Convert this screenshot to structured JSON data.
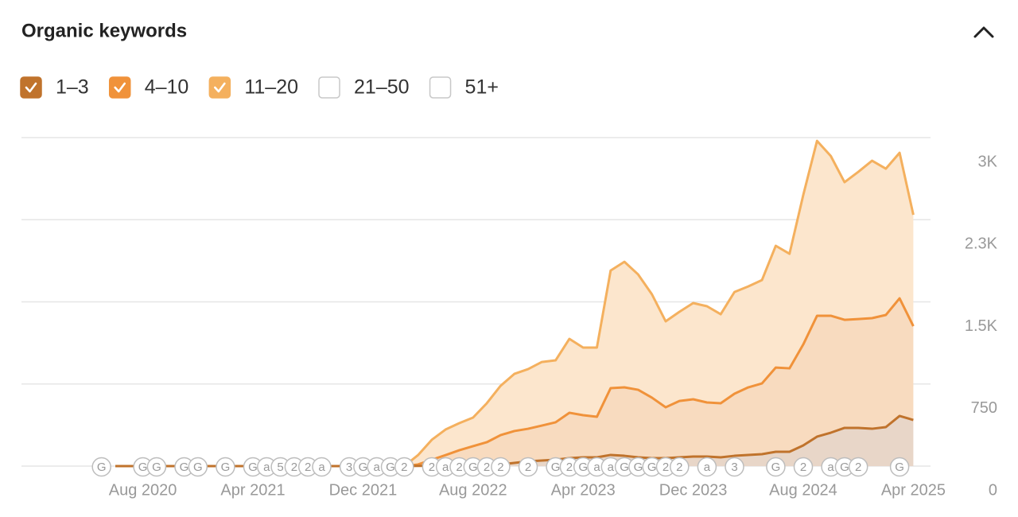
{
  "title": "Organic keywords",
  "chart_data": {
    "type": "stacked-area",
    "categories": [
      null,
      null,
      "Aug 2020",
      null,
      null,
      null,
      null,
      null,
      null,
      null,
      "Apr 2021",
      null,
      null,
      null,
      null,
      null,
      null,
      null,
      "Dec 2021",
      null,
      null,
      null,
      null,
      null,
      null,
      null,
      "Aug 2022",
      null,
      null,
      null,
      null,
      null,
      null,
      null,
      "Apr 2023",
      null,
      null,
      null,
      null,
      null,
      null,
      null,
      "Dec 2023",
      null,
      null,
      null,
      null,
      null,
      null,
      null,
      "Aug 2024",
      null,
      null,
      null,
      null,
      null,
      null,
      null,
      "Apr 2025"
    ],
    "series": [
      {
        "name": "1–3",
        "color": "#c0732c",
        "fill": "#e8d6c8",
        "values": [
          0,
          0,
          0,
          0,
          0,
          0,
          0,
          0,
          0,
          0,
          0,
          0,
          0,
          0,
          0,
          0,
          0,
          0,
          0,
          0,
          0,
          0,
          2,
          3,
          5,
          8,
          10,
          12,
          15,
          29,
          44,
          51,
          58,
          73,
          80,
          80,
          102,
          94,
          80,
          73,
          73,
          80,
          87,
          87,
          80,
          94,
          102,
          109,
          131,
          131,
          189,
          269,
          305,
          349,
          349,
          341,
          356,
          458,
          421
        ]
      },
      {
        "name": "4–10",
        "color": "#f0923a",
        "fill": "#f8dbbf",
        "values": [
          0,
          0,
          0,
          0,
          0,
          0,
          0,
          0,
          0,
          0,
          0,
          0,
          0,
          0,
          0,
          0,
          0,
          0,
          0,
          0,
          0,
          0,
          13,
          55,
          95,
          137,
          172,
          206,
          268,
          291,
          297,
          319,
          342,
          414,
          385,
          370,
          610,
          625,
          617,
          552,
          464,
          515,
          523,
          494,
          494,
          567,
          617,
          646,
          769,
          762,
          922,
          1104,
          1068,
          987,
          994,
          1010,
          1024,
          1074,
          857
        ]
      },
      {
        "name": "11–20",
        "color": "#f4b05e",
        "fill": "#fce6cd",
        "values": [
          0,
          0,
          0,
          0,
          0,
          0,
          0,
          0,
          0,
          0,
          0,
          0,
          0,
          0,
          0,
          0,
          0,
          0,
          0,
          0,
          0,
          0,
          85,
          182,
          234,
          247,
          261,
          356,
          450,
          522,
          545,
          581,
          566,
          675,
          617,
          632,
          1074,
          1147,
          1053,
          944,
          785,
          814,
          879,
          879,
          813,
          929,
          922,
          944,
          1112,
          1046,
          1365,
          1597,
          1459,
          1257,
          1344,
          1438,
          1336,
          1329,
          1017
        ]
      }
    ],
    "unchecked_series": [
      "21–50",
      "51+"
    ],
    "ylim": [
      0,
      3000
    ],
    "yticks": [
      0,
      750,
      {
        "value": 1500,
        "label": "1.5K"
      },
      {
        "value": 2250,
        "label": "2.3K"
      },
      {
        "value": 3000,
        "label": "3K"
      }
    ],
    "grid": true,
    "annotations": [
      {
        "label": "G",
        "at": -1
      },
      {
        "label": "G",
        "at": 2
      },
      {
        "label": "G",
        "at": 3
      },
      {
        "label": "G",
        "at": 5
      },
      {
        "label": "G",
        "at": 6
      },
      {
        "label": "G",
        "at": 8
      },
      {
        "label": "G",
        "at": 10
      },
      {
        "label": "a",
        "at": 11
      },
      {
        "label": "5",
        "at": 12
      },
      {
        "label": "2",
        "at": 13
      },
      {
        "label": "2",
        "at": 14
      },
      {
        "label": "a",
        "at": 15
      },
      {
        "label": "3",
        "at": 17
      },
      {
        "label": "G",
        "at": 18
      },
      {
        "label": "a",
        "at": 19
      },
      {
        "label": "G",
        "at": 20
      },
      {
        "label": "2",
        "at": 21
      },
      {
        "label": "2",
        "at": 23
      },
      {
        "label": "a",
        "at": 24
      },
      {
        "label": "2",
        "at": 25
      },
      {
        "label": "G",
        "at": 26
      },
      {
        "label": "2",
        "at": 27
      },
      {
        "label": "2",
        "at": 28
      },
      {
        "label": "2",
        "at": 30
      },
      {
        "label": "G",
        "at": 32
      },
      {
        "label": "2",
        "at": 33
      },
      {
        "label": "G",
        "at": 34
      },
      {
        "label": "a",
        "at": 35
      },
      {
        "label": "a",
        "at": 36
      },
      {
        "label": "G",
        "at": 37
      },
      {
        "label": "G",
        "at": 38
      },
      {
        "label": "G",
        "at": 39
      },
      {
        "label": "2",
        "at": 40
      },
      {
        "label": "2",
        "at": 41
      },
      {
        "label": "a",
        "at": 43
      },
      {
        "label": "3",
        "at": 45
      },
      {
        "label": "G",
        "at": 48
      },
      {
        "label": "2",
        "at": 50
      },
      {
        "label": "a",
        "at": 52
      },
      {
        "label": "G",
        "at": 53
      },
      {
        "label": "2",
        "at": 54
      },
      {
        "label": "G",
        "at": 57
      }
    ]
  }
}
